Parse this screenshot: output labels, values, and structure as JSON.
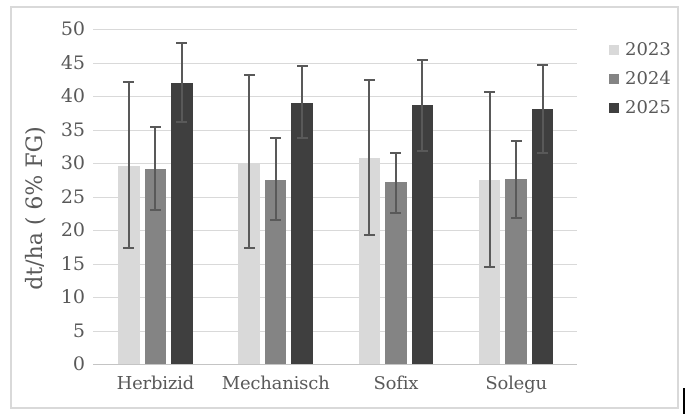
{
  "chart_data": {
    "type": "bar",
    "title": "",
    "xlabel": "",
    "ylabel": "dt/ha ( 6% FG)",
    "categories": [
      "Herbizid",
      "Mechanisch",
      "Sofix",
      "Solegu"
    ],
    "series": [
      {
        "name": "2023",
        "color": "#d9d9d9",
        "values": [
          29.6,
          30.0,
          30.7,
          27.4
        ],
        "error_low": [
          17.2,
          17.1,
          19.1,
          14.3
        ],
        "error_high": [
          42.2,
          43.3,
          42.5,
          40.8
        ]
      },
      {
        "name": "2024",
        "color": "#848484",
        "values": [
          29.1,
          27.5,
          27.1,
          27.6
        ],
        "error_low": [
          22.8,
          21.4,
          22.4,
          21.7
        ],
        "error_high": [
          35.5,
          33.9,
          31.7,
          33.5
        ]
      },
      {
        "name": "2025",
        "color": "#3f3f3f",
        "values": [
          42.0,
          39.0,
          38.6,
          38.0
        ],
        "error_low": [
          36.0,
          33.6,
          31.7,
          31.3
        ],
        "error_high": [
          48.0,
          44.7,
          45.5,
          44.8
        ]
      }
    ],
    "ylim": [
      0,
      50
    ],
    "ytick_step": 5,
    "yticks": [
      "0",
      "5",
      "10",
      "15",
      "20",
      "25",
      "30",
      "35",
      "40",
      "45",
      "50"
    ],
    "grid": true,
    "legend_position": "right",
    "legend": [
      "2023",
      "2024",
      "2025"
    ]
  },
  "colors": {
    "error_bar": "#595959",
    "gridline": "#d9d9d9",
    "axis_line": "#c4c4c4",
    "text": "#595959",
    "frame_border": "#d9d9d9",
    "background": "#ffffff",
    "text_cursor": "#000000"
  }
}
